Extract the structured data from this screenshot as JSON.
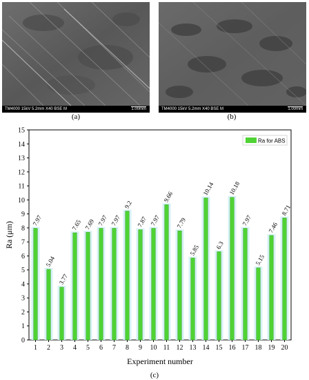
{
  "panels": {
    "a": {
      "info_text": "TM4000 15kV 5.2mm X40 BSE M",
      "scale_text": "1.00mm",
      "caption": "(a)"
    },
    "b": {
      "info_text": "TM4000 15kV 5.2mm X40 BSE M",
      "scale_text": "1.00mm",
      "caption": "(b)"
    }
  },
  "figure_caption": "(c)",
  "chart_data": {
    "type": "bar",
    "categories": [
      "1",
      "2",
      "3",
      "4",
      "5",
      "6",
      "7",
      "8",
      "9",
      "10",
      "11",
      "12",
      "13",
      "14",
      "15",
      "16",
      "17",
      "18",
      "19",
      "20"
    ],
    "series": [
      {
        "name": "Ra for ABS",
        "values": [
          7.97,
          5.04,
          3.77,
          7.65,
          7.69,
          7.97,
          7.97,
          9.2,
          7.87,
          7.97,
          9.66,
          7.79,
          5.85,
          10.14,
          6.3,
          10.18,
          7.97,
          5.15,
          7.46,
          8.71
        ],
        "labels": [
          "7.97",
          "5.04",
          "3.77",
          "7.65",
          "7.69",
          "7.97",
          "7.97",
          "9.2",
          "7.87",
          "7.97",
          "9.66",
          "7.79",
          "5.85",
          "10.14",
          "6.3",
          "10.18",
          "7.97",
          "5.15",
          "7.46",
          "8.71"
        ]
      }
    ],
    "xlabel": "Experiment number",
    "ylabel": "Ra (μm)",
    "ylim": [
      0,
      15
    ],
    "yticks": [
      "0",
      "1",
      "2",
      "3",
      "4",
      "5",
      "6",
      "7",
      "8",
      "9",
      "10",
      "11",
      "12",
      "13",
      "14",
      "15"
    ],
    "legend": "top-right",
    "grid": false,
    "colors": {
      "bar": "#4fd334",
      "bar_stroke": "#2e9e1c",
      "shadow": "#d6f2f4"
    }
  }
}
